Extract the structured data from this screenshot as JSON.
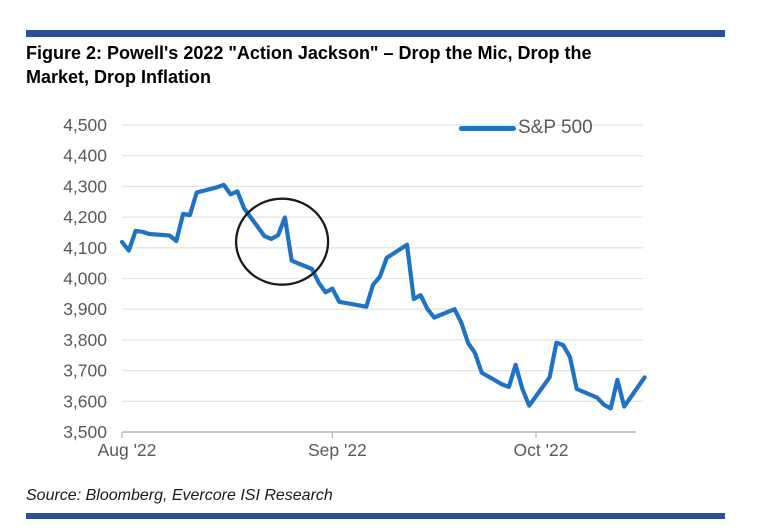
{
  "figure": {
    "title": "Figure 2: Powell's 2022 \"Action Jackson\" – Drop the Mic, Drop the Market, Drop Inflation",
    "source": "Source: Bloomberg, Evercore ISI Research"
  },
  "colors": {
    "accent_bar": "#2C4F9C",
    "line": "#1F72C4",
    "grid": "#E4E4E4",
    "axis": "#B9B9B9",
    "tick_label": "#595959",
    "annotation": "#1A1A1A"
  },
  "chart_data": {
    "type": "line",
    "title": "Figure 2: Powell's 2022 \"Action Jackson\" – Drop the Mic, Drop the Market, Drop Inflation",
    "xlabel": "",
    "ylabel": "",
    "ylim": [
      3500,
      4500
    ],
    "grid": "horizontal",
    "legend_position": "top-right",
    "x_ticks": [
      {
        "date": "2022-08-01",
        "label": "Aug '22"
      },
      {
        "date": "2022-09-01",
        "label": "Sep '22"
      },
      {
        "date": "2022-10-01",
        "label": "Oct '22"
      }
    ],
    "y_ticks": [
      {
        "value": 4500,
        "label": "4,500"
      },
      {
        "value": 4400,
        "label": "4,400"
      },
      {
        "value": 4300,
        "label": "4,300"
      },
      {
        "value": 4200,
        "label": "4,200"
      },
      {
        "value": 4100,
        "label": "4,100"
      },
      {
        "value": 4000,
        "label": "4,000"
      },
      {
        "value": 3900,
        "label": "3,900"
      },
      {
        "value": 3800,
        "label": "3,800"
      },
      {
        "value": 3700,
        "label": "3,700"
      },
      {
        "value": 3600,
        "label": "3,600"
      },
      {
        "value": 3500,
        "label": "3,500"
      }
    ],
    "series": [
      {
        "name": "S&P 500",
        "color": "#1F72C4",
        "points": [
          [
            "2022-08-01",
            4119
          ],
          [
            "2022-08-02",
            4091
          ],
          [
            "2022-08-03",
            4155
          ],
          [
            "2022-08-04",
            4152
          ],
          [
            "2022-08-05",
            4145
          ],
          [
            "2022-08-08",
            4140
          ],
          [
            "2022-08-09",
            4122
          ],
          [
            "2022-08-10",
            4210
          ],
          [
            "2022-08-11",
            4207
          ],
          [
            "2022-08-12",
            4280
          ],
          [
            "2022-08-15",
            4297
          ],
          [
            "2022-08-16",
            4305
          ],
          [
            "2022-08-17",
            4274
          ],
          [
            "2022-08-18",
            4284
          ],
          [
            "2022-08-19",
            4228
          ],
          [
            "2022-08-22",
            4138
          ],
          [
            "2022-08-23",
            4129
          ],
          [
            "2022-08-24",
            4141
          ],
          [
            "2022-08-25",
            4199
          ],
          [
            "2022-08-26",
            4058
          ],
          [
            "2022-08-29",
            4031
          ],
          [
            "2022-08-30",
            3986
          ],
          [
            "2022-08-31",
            3955
          ],
          [
            "2022-09-01",
            3967
          ],
          [
            "2022-09-02",
            3924
          ],
          [
            "2022-09-06",
            3908
          ],
          [
            "2022-09-07",
            3980
          ],
          [
            "2022-09-08",
            4006
          ],
          [
            "2022-09-09",
            4067
          ],
          [
            "2022-09-12",
            4110
          ],
          [
            "2022-09-13",
            3933
          ],
          [
            "2022-09-14",
            3946
          ],
          [
            "2022-09-15",
            3901
          ],
          [
            "2022-09-16",
            3873
          ],
          [
            "2022-09-19",
            3900
          ],
          [
            "2022-09-20",
            3856
          ],
          [
            "2022-09-21",
            3790
          ],
          [
            "2022-09-22",
            3758
          ],
          [
            "2022-09-23",
            3693
          ],
          [
            "2022-09-26",
            3655
          ],
          [
            "2022-09-27",
            3647
          ],
          [
            "2022-09-28",
            3719
          ],
          [
            "2022-09-29",
            3640
          ],
          [
            "2022-09-30",
            3586
          ],
          [
            "2022-10-03",
            3678
          ],
          [
            "2022-10-04",
            3791
          ],
          [
            "2022-10-05",
            3783
          ],
          [
            "2022-10-06",
            3745
          ],
          [
            "2022-10-07",
            3640
          ],
          [
            "2022-10-10",
            3612
          ],
          [
            "2022-10-11",
            3589
          ],
          [
            "2022-10-12",
            3577
          ],
          [
            "2022-10-13",
            3670
          ],
          [
            "2022-10-14",
            3583
          ],
          [
            "2022-10-17",
            3678
          ]
        ]
      }
    ],
    "annotations": [
      {
        "type": "ellipse",
        "center_date": "2022-08-24",
        "center_value": 4120,
        "description": "hand-drawn circle highlighting the late-August Jackson Hole drop"
      }
    ]
  }
}
